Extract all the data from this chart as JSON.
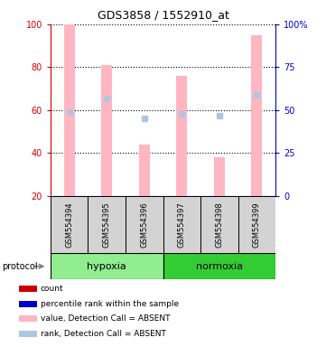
{
  "title": "GDS3858 / 1552910_at",
  "samples": [
    "GSM554394",
    "GSM554395",
    "GSM554396",
    "GSM554397",
    "GSM554398",
    "GSM554399"
  ],
  "group_colors": {
    "hypoxia": "#90EE90",
    "normoxia": "#32CD32"
  },
  "bar_values": [
    100,
    81,
    44,
    76,
    38,
    95
  ],
  "rank_values": [
    49,
    57,
    45,
    48,
    47,
    59
  ],
  "bar_color": "#FFB6C1",
  "rank_color": "#AFC6E0",
  "dot_color_red": "#CC0000",
  "dot_color_blue": "#0000CC",
  "ylim_left": [
    20,
    100
  ],
  "ylim_right": [
    0,
    100
  ],
  "yticks_left": [
    20,
    40,
    60,
    80,
    100
  ],
  "ytick_labels_right": [
    "0",
    "25",
    "50",
    "75",
    "100%"
  ],
  "left_axis_color": "#CC0000",
  "right_axis_color": "#0000CC",
  "xlabel_area_color": "#D3D3D3",
  "hypoxia_color": "#90EE90",
  "normoxia_color": "#32CD32",
  "legend_labels": [
    "count",
    "percentile rank within the sample",
    "value, Detection Call = ABSENT",
    "rank, Detection Call = ABSENT"
  ],
  "legend_colors": [
    "#CC0000",
    "#0000CC",
    "#FFB6C1",
    "#AFC6E0"
  ]
}
